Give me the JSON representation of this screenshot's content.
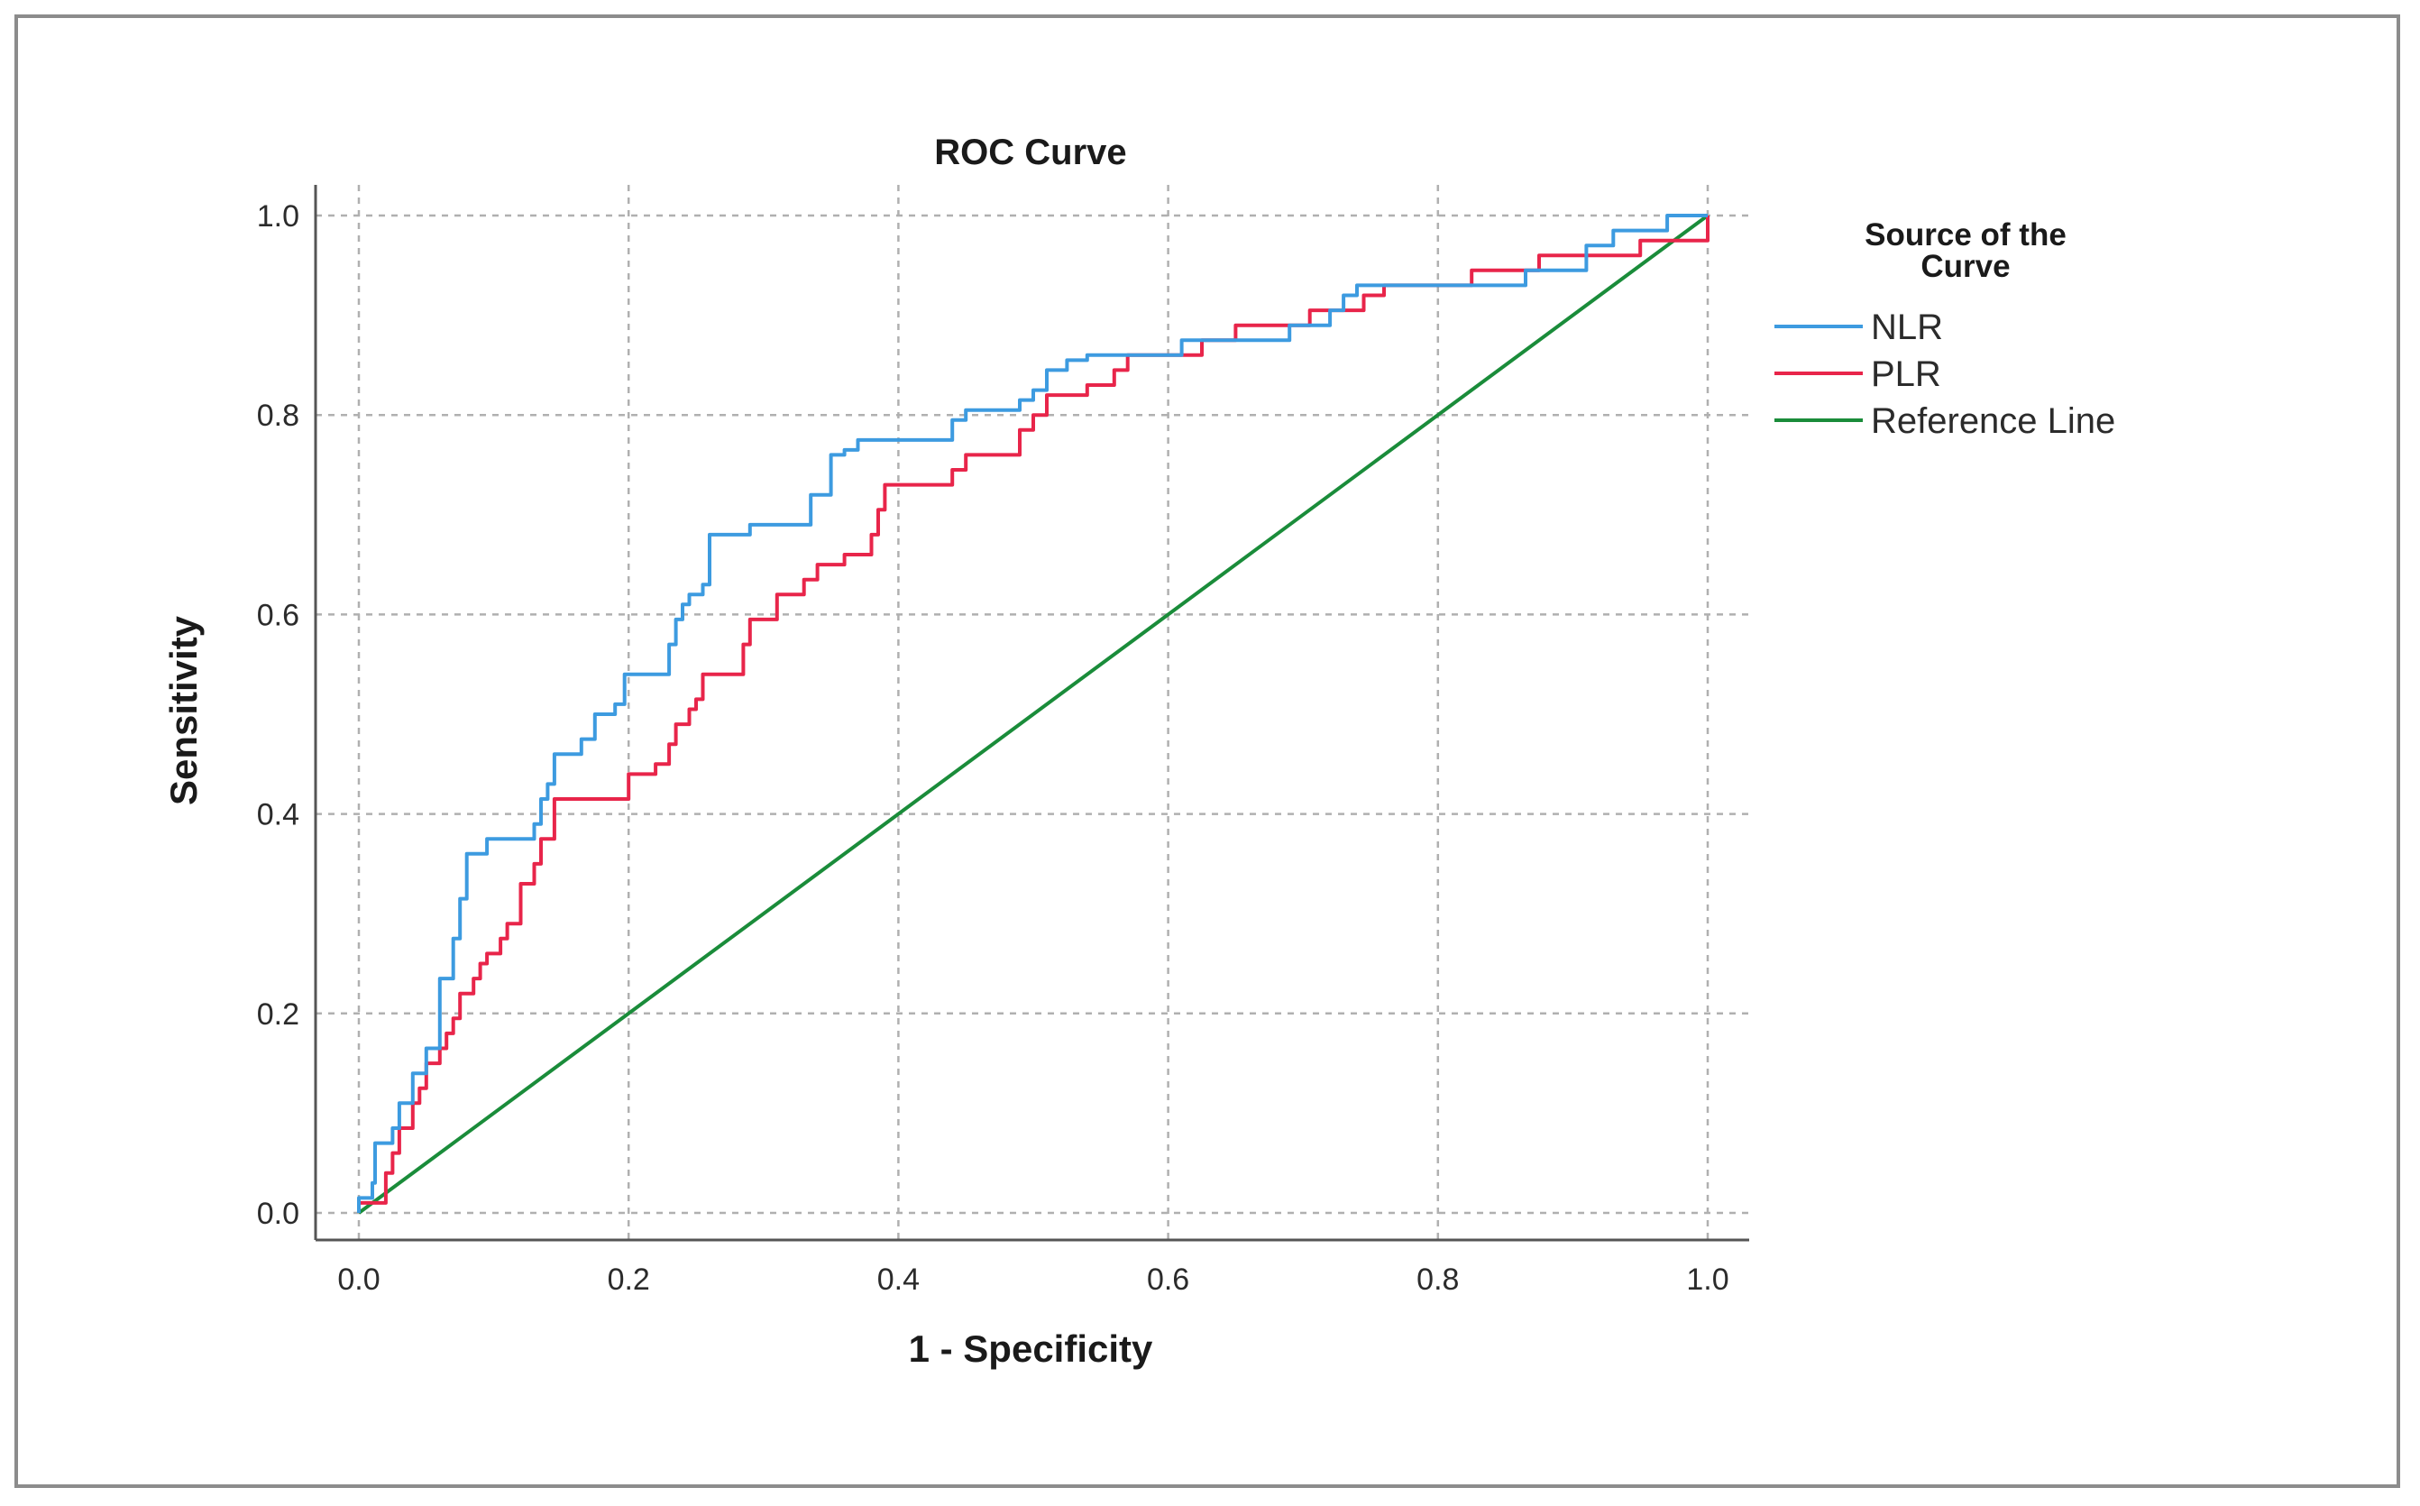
{
  "chart_data": {
    "type": "line",
    "title": "ROC Curve",
    "xlabel": "1 - Specificity",
    "ylabel": "Sensitivity",
    "xlim": [
      0,
      1
    ],
    "ylim": [
      0,
      1
    ],
    "grid": true,
    "x_ticks": [
      "0.0",
      "0.2",
      "0.4",
      "0.6",
      "0.8",
      "1.0"
    ],
    "y_ticks": [
      "0.0",
      "0.2",
      "0.4",
      "0.6",
      "0.8",
      "1.0"
    ],
    "legend": {
      "title_line1": "Source of the",
      "title_line2": "Curve",
      "placement": "right"
    },
    "series": [
      {
        "name": "NLR",
        "color": "#3d9be0",
        "points": [
          [
            0.0,
            0.0
          ],
          [
            0.0,
            0.015
          ],
          [
            0.01,
            0.015
          ],
          [
            0.01,
            0.03
          ],
          [
            0.012,
            0.03
          ],
          [
            0.012,
            0.07
          ],
          [
            0.025,
            0.07
          ],
          [
            0.025,
            0.085
          ],
          [
            0.03,
            0.085
          ],
          [
            0.03,
            0.11
          ],
          [
            0.04,
            0.11
          ],
          [
            0.04,
            0.14
          ],
          [
            0.05,
            0.14
          ],
          [
            0.05,
            0.165
          ],
          [
            0.06,
            0.165
          ],
          [
            0.06,
            0.235
          ],
          [
            0.07,
            0.235
          ],
          [
            0.07,
            0.275
          ],
          [
            0.075,
            0.275
          ],
          [
            0.075,
            0.315
          ],
          [
            0.08,
            0.315
          ],
          [
            0.08,
            0.36
          ],
          [
            0.095,
            0.36
          ],
          [
            0.095,
            0.375
          ],
          [
            0.13,
            0.375
          ],
          [
            0.13,
            0.39
          ],
          [
            0.135,
            0.39
          ],
          [
            0.135,
            0.415
          ],
          [
            0.14,
            0.415
          ],
          [
            0.14,
            0.43
          ],
          [
            0.145,
            0.43
          ],
          [
            0.145,
            0.46
          ],
          [
            0.165,
            0.46
          ],
          [
            0.165,
            0.475
          ],
          [
            0.175,
            0.475
          ],
          [
            0.175,
            0.5
          ],
          [
            0.19,
            0.5
          ],
          [
            0.19,
            0.51
          ],
          [
            0.197,
            0.51
          ],
          [
            0.197,
            0.54
          ],
          [
            0.23,
            0.54
          ],
          [
            0.23,
            0.57
          ],
          [
            0.235,
            0.57
          ],
          [
            0.235,
            0.595
          ],
          [
            0.24,
            0.595
          ],
          [
            0.24,
            0.61
          ],
          [
            0.245,
            0.61
          ],
          [
            0.245,
            0.62
          ],
          [
            0.255,
            0.62
          ],
          [
            0.255,
            0.63
          ],
          [
            0.26,
            0.63
          ],
          [
            0.26,
            0.68
          ],
          [
            0.29,
            0.68
          ],
          [
            0.29,
            0.69
          ],
          [
            0.335,
            0.69
          ],
          [
            0.335,
            0.72
          ],
          [
            0.35,
            0.72
          ],
          [
            0.35,
            0.76
          ],
          [
            0.36,
            0.76
          ],
          [
            0.36,
            0.765
          ],
          [
            0.37,
            0.765
          ],
          [
            0.37,
            0.775
          ],
          [
            0.44,
            0.775
          ],
          [
            0.44,
            0.795
          ],
          [
            0.45,
            0.795
          ],
          [
            0.45,
            0.805
          ],
          [
            0.49,
            0.805
          ],
          [
            0.49,
            0.815
          ],
          [
            0.5,
            0.815
          ],
          [
            0.5,
            0.825
          ],
          [
            0.51,
            0.825
          ],
          [
            0.51,
            0.845
          ],
          [
            0.525,
            0.845
          ],
          [
            0.525,
            0.855
          ],
          [
            0.54,
            0.855
          ],
          [
            0.54,
            0.86
          ],
          [
            0.61,
            0.86
          ],
          [
            0.61,
            0.875
          ],
          [
            0.69,
            0.875
          ],
          [
            0.69,
            0.89
          ],
          [
            0.72,
            0.89
          ],
          [
            0.72,
            0.905
          ],
          [
            0.73,
            0.905
          ],
          [
            0.73,
            0.92
          ],
          [
            0.74,
            0.92
          ],
          [
            0.74,
            0.93
          ],
          [
            0.865,
            0.93
          ],
          [
            0.865,
            0.945
          ],
          [
            0.91,
            0.945
          ],
          [
            0.91,
            0.97
          ],
          [
            0.93,
            0.97
          ],
          [
            0.93,
            0.985
          ],
          [
            0.97,
            0.985
          ],
          [
            0.97,
            1.0
          ],
          [
            1.0,
            1.0
          ]
        ]
      },
      {
        "name": "PLR",
        "color": "#e8254a",
        "points": [
          [
            0.0,
            0.0
          ],
          [
            0.0,
            0.01
          ],
          [
            0.02,
            0.01
          ],
          [
            0.02,
            0.04
          ],
          [
            0.025,
            0.04
          ],
          [
            0.025,
            0.06
          ],
          [
            0.03,
            0.06
          ],
          [
            0.03,
            0.085
          ],
          [
            0.04,
            0.085
          ],
          [
            0.04,
            0.11
          ],
          [
            0.045,
            0.11
          ],
          [
            0.045,
            0.125
          ],
          [
            0.05,
            0.125
          ],
          [
            0.05,
            0.15
          ],
          [
            0.06,
            0.15
          ],
          [
            0.06,
            0.165
          ],
          [
            0.065,
            0.165
          ],
          [
            0.065,
            0.18
          ],
          [
            0.07,
            0.18
          ],
          [
            0.07,
            0.195
          ],
          [
            0.075,
            0.195
          ],
          [
            0.075,
            0.22
          ],
          [
            0.085,
            0.22
          ],
          [
            0.085,
            0.235
          ],
          [
            0.09,
            0.235
          ],
          [
            0.09,
            0.25
          ],
          [
            0.095,
            0.25
          ],
          [
            0.095,
            0.26
          ],
          [
            0.105,
            0.26
          ],
          [
            0.105,
            0.275
          ],
          [
            0.11,
            0.275
          ],
          [
            0.11,
            0.29
          ],
          [
            0.12,
            0.29
          ],
          [
            0.12,
            0.33
          ],
          [
            0.13,
            0.33
          ],
          [
            0.13,
            0.35
          ],
          [
            0.135,
            0.35
          ],
          [
            0.135,
            0.375
          ],
          [
            0.145,
            0.375
          ],
          [
            0.145,
            0.415
          ],
          [
            0.2,
            0.415
          ],
          [
            0.2,
            0.44
          ],
          [
            0.22,
            0.44
          ],
          [
            0.22,
            0.45
          ],
          [
            0.23,
            0.45
          ],
          [
            0.23,
            0.47
          ],
          [
            0.235,
            0.47
          ],
          [
            0.235,
            0.49
          ],
          [
            0.245,
            0.49
          ],
          [
            0.245,
            0.505
          ],
          [
            0.25,
            0.505
          ],
          [
            0.25,
            0.515
          ],
          [
            0.255,
            0.515
          ],
          [
            0.255,
            0.54
          ],
          [
            0.285,
            0.54
          ],
          [
            0.285,
            0.57
          ],
          [
            0.29,
            0.57
          ],
          [
            0.29,
            0.595
          ],
          [
            0.31,
            0.595
          ],
          [
            0.31,
            0.62
          ],
          [
            0.33,
            0.62
          ],
          [
            0.33,
            0.635
          ],
          [
            0.34,
            0.635
          ],
          [
            0.34,
            0.65
          ],
          [
            0.36,
            0.65
          ],
          [
            0.36,
            0.66
          ],
          [
            0.38,
            0.66
          ],
          [
            0.38,
            0.68
          ],
          [
            0.385,
            0.68
          ],
          [
            0.385,
            0.705
          ],
          [
            0.39,
            0.705
          ],
          [
            0.39,
            0.73
          ],
          [
            0.44,
            0.73
          ],
          [
            0.44,
            0.745
          ],
          [
            0.45,
            0.745
          ],
          [
            0.45,
            0.76
          ],
          [
            0.49,
            0.76
          ],
          [
            0.49,
            0.785
          ],
          [
            0.5,
            0.785
          ],
          [
            0.5,
            0.8
          ],
          [
            0.51,
            0.8
          ],
          [
            0.51,
            0.82
          ],
          [
            0.54,
            0.82
          ],
          [
            0.54,
            0.83
          ],
          [
            0.56,
            0.83
          ],
          [
            0.56,
            0.845
          ],
          [
            0.57,
            0.845
          ],
          [
            0.57,
            0.86
          ],
          [
            0.625,
            0.86
          ],
          [
            0.625,
            0.875
          ],
          [
            0.65,
            0.875
          ],
          [
            0.65,
            0.89
          ],
          [
            0.705,
            0.89
          ],
          [
            0.705,
            0.905
          ],
          [
            0.745,
            0.905
          ],
          [
            0.745,
            0.92
          ],
          [
            0.76,
            0.92
          ],
          [
            0.76,
            0.93
          ],
          [
            0.825,
            0.93
          ],
          [
            0.825,
            0.945
          ],
          [
            0.875,
            0.945
          ],
          [
            0.875,
            0.96
          ],
          [
            0.95,
            0.96
          ],
          [
            0.95,
            0.975
          ],
          [
            1.0,
            0.975
          ],
          [
            1.0,
            1.0
          ]
        ]
      },
      {
        "name": "Reference Line",
        "color": "#1a8c3a",
        "points": [
          [
            0.0,
            0.0
          ],
          [
            1.0,
            1.0
          ]
        ]
      }
    ]
  }
}
